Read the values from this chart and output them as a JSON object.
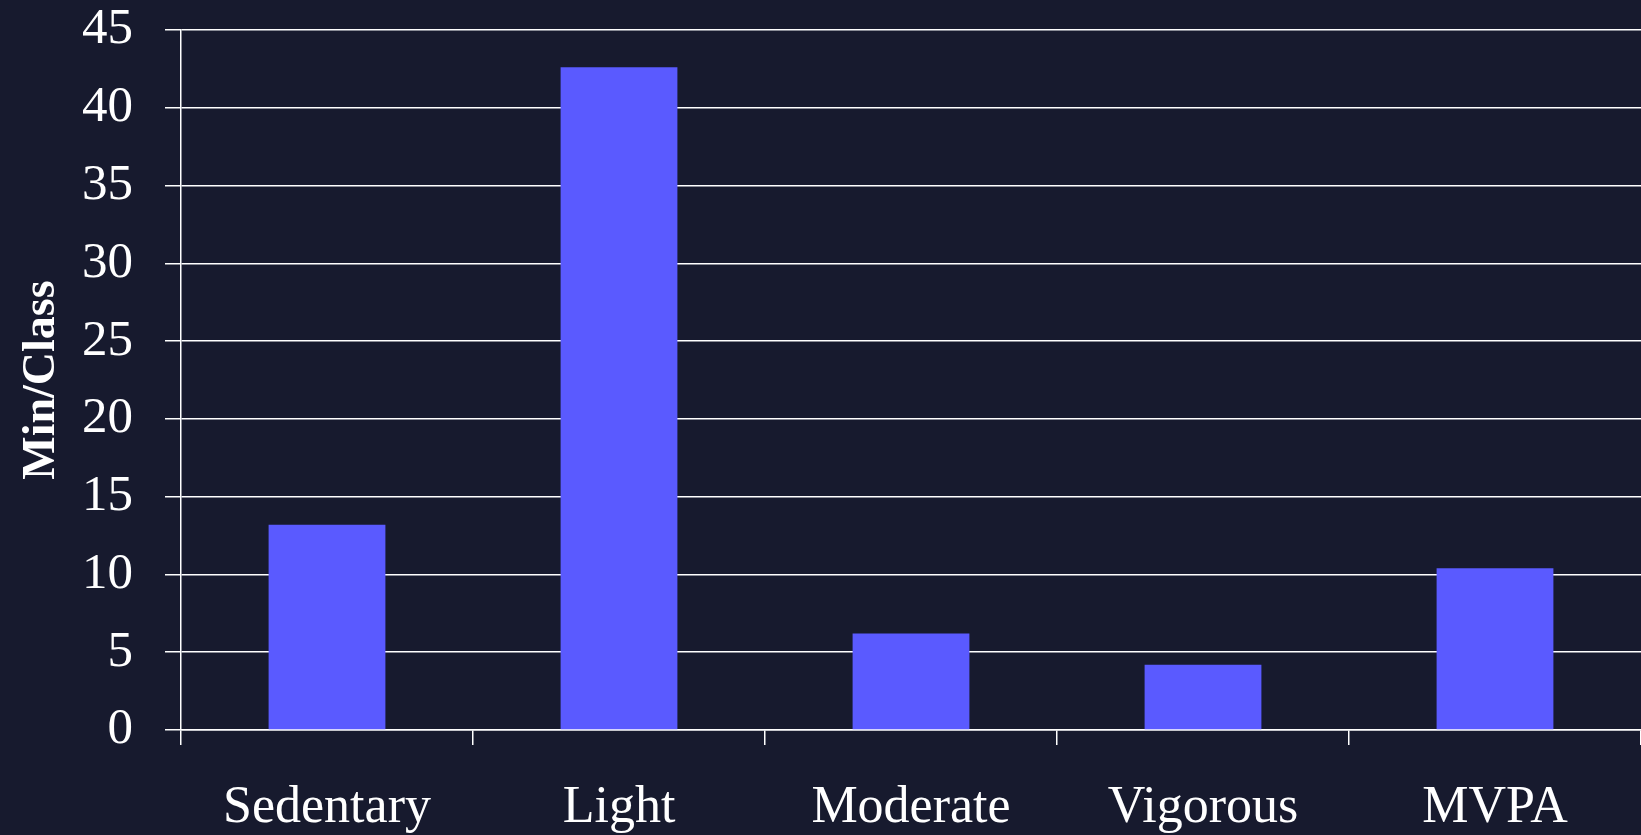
{
  "chart_data": {
    "type": "bar",
    "ylabel": "Min/Class",
    "categories": [
      "Sedentary",
      "Light",
      "Moderate",
      "Vigorous",
      "MVPA"
    ],
    "values": [
      13.2,
      42.6,
      6.2,
      4.2,
      10.4
    ],
    "color": "#5a5aff",
    "ylim": [
      0,
      45
    ],
    "yticks": [
      0,
      5,
      10,
      15,
      20,
      25,
      30,
      35,
      40,
      45
    ],
    "grid": "y"
  }
}
